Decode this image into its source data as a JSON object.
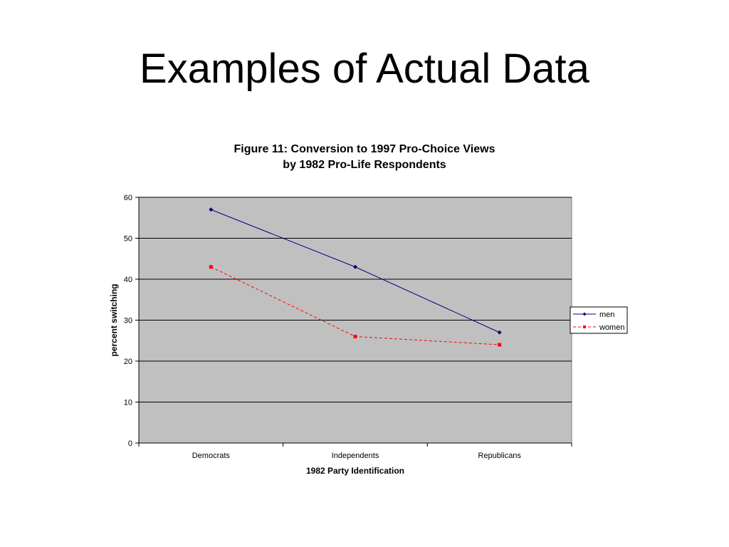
{
  "slide": {
    "title": "Examples of Actual Data"
  },
  "chart_data": {
    "type": "line",
    "title_lines": [
      "Figure 11: Conversion to 1997 Pro-Choice Views",
      "by 1982 Pro-Life Respondents"
    ],
    "xlabel": "1982 Party Identification",
    "ylabel": "percent switching",
    "categories": [
      "Democrats",
      "Independents",
      "Republicans"
    ],
    "ylim": [
      0,
      60
    ],
    "yticks": [
      0,
      10,
      20,
      30,
      40,
      50,
      60
    ],
    "grid": true,
    "plot_background": "#c0c0c0",
    "legend_position": "right",
    "series": [
      {
        "name": "men",
        "values": [
          57,
          43,
          27
        ],
        "color": "#000080",
        "marker": "diamond",
        "line_style": "solid"
      },
      {
        "name": "women",
        "values": [
          43,
          26,
          24
        ],
        "color": "#ff0000",
        "marker": "square",
        "line_style": "dashed"
      }
    ]
  }
}
